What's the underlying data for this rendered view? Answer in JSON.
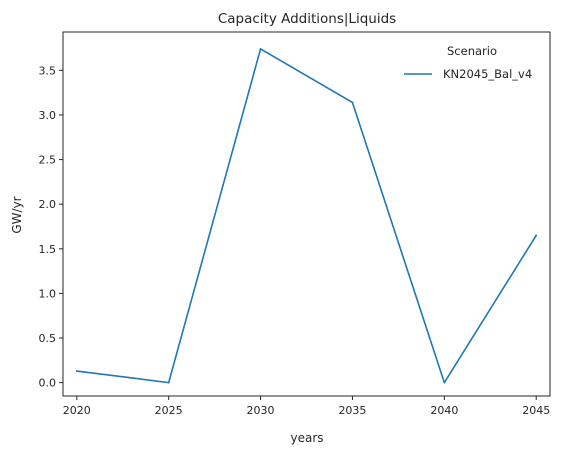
{
  "chart_data": {
    "type": "line",
    "title": "Capacity Additions|Liquids",
    "xlabel": "years",
    "ylabel": "GW/yr",
    "x": [
      2020,
      2025,
      2030,
      2035,
      2040,
      2045
    ],
    "x_ticks": [
      "2020",
      "2025",
      "2030",
      "2035",
      "2040",
      "2045"
    ],
    "y_ticks": [
      "0.0",
      "0.5",
      "1.0",
      "1.5",
      "2.0",
      "2.5",
      "3.0",
      "3.5"
    ],
    "xlim": [
      2019.25,
      2045.75
    ],
    "ylim": [
      -0.15,
      3.93
    ],
    "grid": false,
    "legend": {
      "title": "Scenario",
      "placement": "top-right"
    },
    "series": [
      {
        "name": "KN2045_Bal_v4",
        "color": "#1f77b4",
        "values": [
          0.13,
          0.0,
          3.74,
          3.14,
          0.0,
          1.65
        ]
      }
    ]
  }
}
